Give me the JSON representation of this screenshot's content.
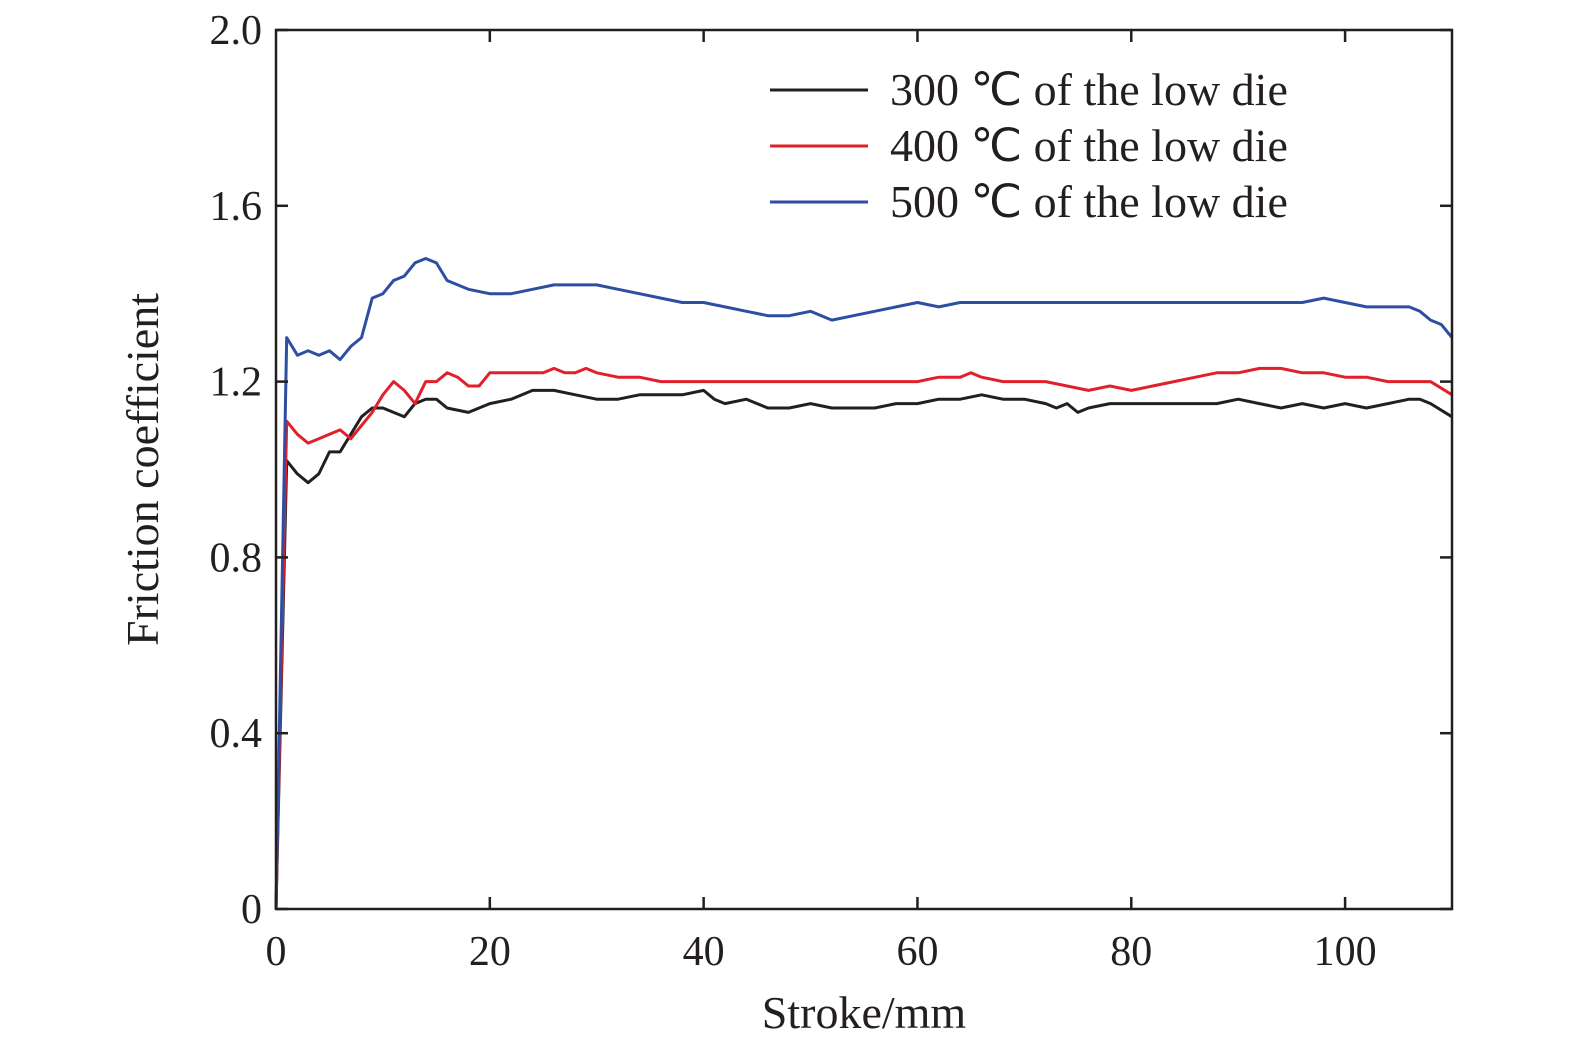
{
  "chart_data": {
    "type": "line",
    "title": "",
    "xlabel": "Stroke/mm",
    "ylabel": "Friction coefficient",
    "xlim": [
      0,
      110
    ],
    "ylim": [
      0,
      2.0
    ],
    "xticks": [
      0,
      20,
      40,
      60,
      80,
      100
    ],
    "xtick_labels": [
      "0",
      "20",
      "40",
      "60",
      "80",
      "100"
    ],
    "yticks": [
      0,
      0.4,
      0.8,
      1.2,
      1.6,
      2.0
    ],
    "ytick_labels": [
      "0",
      "0.4",
      "0.8",
      "1.2",
      "1.6",
      "2.0"
    ],
    "grid": false,
    "legend_position": "top-right",
    "series": [
      {
        "name": "300 ℃ of the low die",
        "color": "#231f20",
        "x": [
          0,
          1,
          2,
          3,
          4,
          5,
          6,
          7,
          8,
          9,
          10,
          11,
          12,
          13,
          14,
          15,
          16,
          18,
          20,
          22,
          24,
          26,
          28,
          30,
          32,
          34,
          36,
          38,
          40,
          41,
          42,
          44,
          45,
          46,
          48,
          50,
          52,
          54,
          56,
          58,
          60,
          62,
          64,
          66,
          68,
          70,
          72,
          73,
          74,
          75,
          76,
          78,
          80,
          82,
          84,
          86,
          88,
          90,
          92,
          94,
          96,
          98,
          100,
          102,
          104,
          106,
          107,
          108,
          110
        ],
        "y": [
          0,
          1.02,
          0.99,
          0.97,
          0.99,
          1.04,
          1.04,
          1.08,
          1.12,
          1.14,
          1.14,
          1.13,
          1.12,
          1.15,
          1.16,
          1.16,
          1.14,
          1.13,
          1.15,
          1.16,
          1.18,
          1.18,
          1.17,
          1.16,
          1.16,
          1.17,
          1.17,
          1.17,
          1.18,
          1.16,
          1.15,
          1.16,
          1.15,
          1.14,
          1.14,
          1.15,
          1.14,
          1.14,
          1.14,
          1.15,
          1.15,
          1.16,
          1.16,
          1.17,
          1.16,
          1.16,
          1.15,
          1.14,
          1.15,
          1.13,
          1.14,
          1.15,
          1.15,
          1.15,
          1.15,
          1.15,
          1.15,
          1.16,
          1.15,
          1.14,
          1.15,
          1.14,
          1.15,
          1.14,
          1.15,
          1.16,
          1.16,
          1.15,
          1.12
        ]
      },
      {
        "name": "400 ℃ of the low die",
        "color": "#e0212b",
        "x": [
          0,
          1,
          2,
          3,
          4,
          5,
          6,
          7,
          8,
          9,
          10,
          11,
          12,
          13,
          14,
          15,
          16,
          17,
          18,
          19,
          20,
          22,
          24,
          25,
          26,
          27,
          28,
          29,
          30,
          32,
          34,
          36,
          38,
          40,
          42,
          44,
          46,
          48,
          50,
          52,
          54,
          56,
          58,
          60,
          62,
          64,
          65,
          66,
          68,
          70,
          72,
          74,
          76,
          78,
          80,
          82,
          84,
          86,
          88,
          90,
          92,
          94,
          96,
          98,
          100,
          102,
          104,
          106,
          108,
          110
        ],
        "y": [
          0,
          1.11,
          1.08,
          1.06,
          1.07,
          1.08,
          1.09,
          1.07,
          1.1,
          1.13,
          1.17,
          1.2,
          1.18,
          1.15,
          1.2,
          1.2,
          1.22,
          1.21,
          1.19,
          1.19,
          1.22,
          1.22,
          1.22,
          1.22,
          1.23,
          1.22,
          1.22,
          1.23,
          1.22,
          1.21,
          1.21,
          1.2,
          1.2,
          1.2,
          1.2,
          1.2,
          1.2,
          1.2,
          1.2,
          1.2,
          1.2,
          1.2,
          1.2,
          1.2,
          1.21,
          1.21,
          1.22,
          1.21,
          1.2,
          1.2,
          1.2,
          1.19,
          1.18,
          1.19,
          1.18,
          1.19,
          1.2,
          1.21,
          1.22,
          1.22,
          1.23,
          1.23,
          1.22,
          1.22,
          1.21,
          1.21,
          1.2,
          1.2,
          1.2,
          1.17
        ]
      },
      {
        "name": "500 ℃ of the low die",
        "color": "#2e4ea3",
        "x": [
          0,
          1,
          2,
          3,
          4,
          5,
          6,
          7,
          8,
          9,
          10,
          11,
          12,
          13,
          14,
          15,
          16,
          17,
          18,
          20,
          22,
          24,
          26,
          28,
          30,
          32,
          34,
          36,
          38,
          40,
          42,
          44,
          46,
          48,
          50,
          52,
          54,
          56,
          58,
          60,
          62,
          64,
          66,
          68,
          70,
          72,
          74,
          76,
          78,
          80,
          82,
          84,
          86,
          88,
          90,
          92,
          94,
          96,
          98,
          100,
          102,
          104,
          106,
          107,
          108,
          109,
          110
        ],
        "y": [
          0,
          1.3,
          1.26,
          1.27,
          1.26,
          1.27,
          1.25,
          1.28,
          1.3,
          1.39,
          1.4,
          1.43,
          1.44,
          1.47,
          1.48,
          1.47,
          1.43,
          1.42,
          1.41,
          1.4,
          1.4,
          1.41,
          1.42,
          1.42,
          1.42,
          1.41,
          1.4,
          1.39,
          1.38,
          1.38,
          1.37,
          1.36,
          1.35,
          1.35,
          1.36,
          1.34,
          1.35,
          1.36,
          1.37,
          1.38,
          1.37,
          1.38,
          1.38,
          1.38,
          1.38,
          1.38,
          1.38,
          1.38,
          1.38,
          1.38,
          1.38,
          1.38,
          1.38,
          1.38,
          1.38,
          1.38,
          1.38,
          1.38,
          1.39,
          1.38,
          1.37,
          1.37,
          1.37,
          1.36,
          1.34,
          1.33,
          1.3
        ]
      }
    ]
  }
}
